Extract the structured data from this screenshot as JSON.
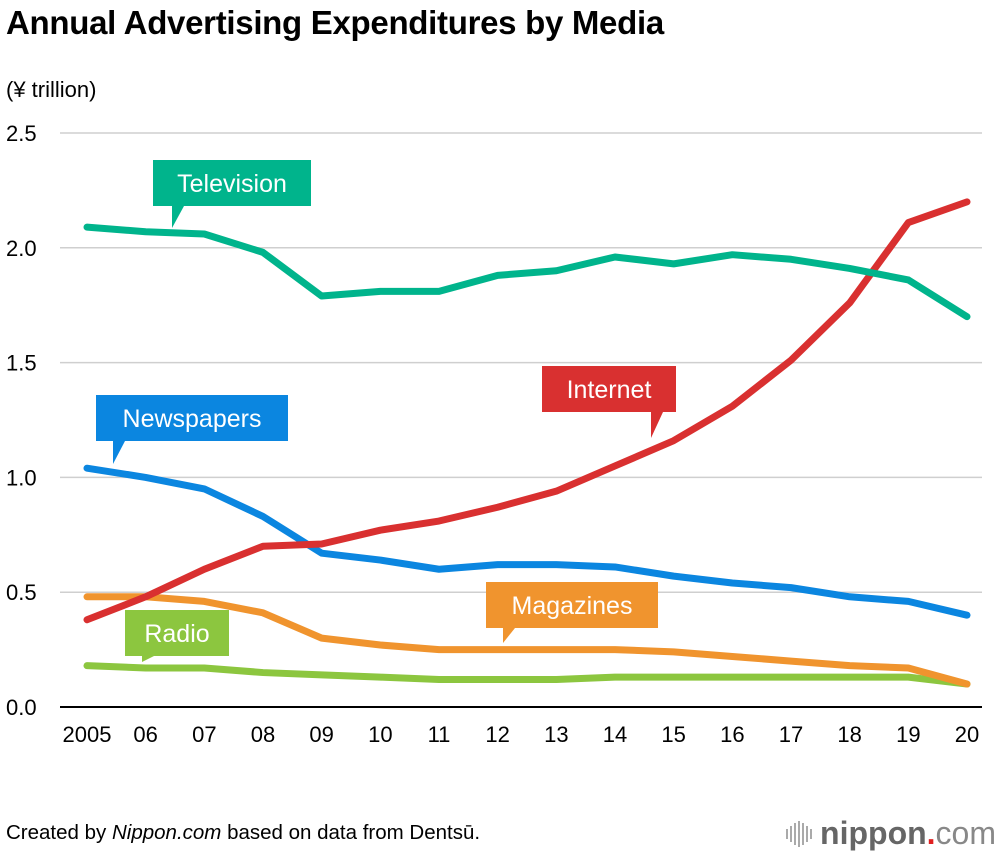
{
  "chart_data": {
    "type": "line",
    "title": "Annual Advertising Expenditures by Media",
    "ylabel": "(¥ trillion)",
    "xlabel": "",
    "ylim": [
      0,
      2.5
    ],
    "yticks": [
      "0.0",
      "0.5",
      "1.0",
      "1.5",
      "2.0",
      "2.5"
    ],
    "ytick_values": [
      0,
      0.5,
      1.0,
      1.5,
      2.0,
      2.5
    ],
    "x": [
      2005,
      2006,
      2007,
      2008,
      2009,
      2010,
      2011,
      2012,
      2013,
      2014,
      2015,
      2016,
      2017,
      2018,
      2019,
      2020
    ],
    "xtick_labels": [
      "2005",
      "06",
      "07",
      "08",
      "09",
      "10",
      "11",
      "12",
      "13",
      "14",
      "15",
      "16",
      "17",
      "18",
      "19",
      "20"
    ],
    "grid": true,
    "legend": "inline callout labels",
    "series": [
      {
        "name": "Television",
        "color": "#00b48c",
        "label_year": 2006,
        "values": [
          2.09,
          2.07,
          2.06,
          1.98,
          1.79,
          1.81,
          1.81,
          1.88,
          1.9,
          1.96,
          1.93,
          1.97,
          1.95,
          1.91,
          1.86,
          1.7
        ]
      },
      {
        "name": "Internet",
        "color": "#d93030",
        "label_year": 2015,
        "values": [
          0.38,
          0.48,
          0.6,
          0.7,
          0.71,
          0.77,
          0.81,
          0.87,
          0.94,
          1.05,
          1.16,
          1.31,
          1.51,
          1.76,
          2.11,
          2.2
        ]
      },
      {
        "name": "Newspapers",
        "color": "#0b86e0",
        "label_year": 2005,
        "values": [
          1.04,
          1.0,
          0.95,
          0.83,
          0.67,
          0.64,
          0.6,
          0.62,
          0.62,
          0.61,
          0.57,
          0.54,
          0.52,
          0.48,
          0.46,
          0.4
        ]
      },
      {
        "name": "Magazines",
        "color": "#f0942e",
        "label_year": 2012,
        "values": [
          0.48,
          0.48,
          0.46,
          0.41,
          0.3,
          0.27,
          0.25,
          0.25,
          0.25,
          0.25,
          0.24,
          0.22,
          0.2,
          0.18,
          0.17,
          0.1
        ]
      },
      {
        "name": "Radio",
        "color": "#8cc63f",
        "label_year": 2006,
        "values": [
          0.18,
          0.17,
          0.17,
          0.15,
          0.14,
          0.13,
          0.12,
          0.12,
          0.12,
          0.13,
          0.13,
          0.13,
          0.13,
          0.13,
          0.13,
          0.1
        ]
      }
    ]
  },
  "footer": {
    "prefix": "Created by ",
    "source_site": "Nippon.com",
    "suffix": " based on data from Dentsū."
  },
  "logo": {
    "name": "nippon",
    "dot": ".",
    "tld": "com"
  }
}
